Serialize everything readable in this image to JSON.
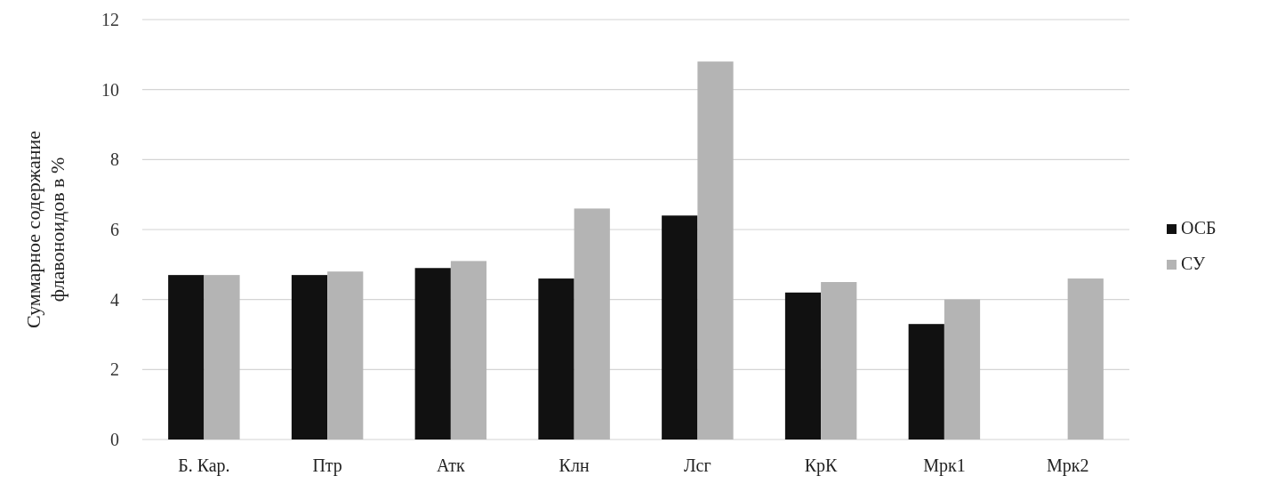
{
  "chart_data": {
    "type": "bar",
    "ylabel": "Суммарное содержание флавоноидов в %",
    "categories": [
      "Б. Кар.",
      "Птр",
      "Атк",
      "Клн",
      "Лсг",
      "КрК",
      "Мрк1",
      "Мрк2"
    ],
    "series": [
      {
        "name": "ОСБ",
        "color": "#111111",
        "values": [
          4.7,
          4.7,
          4.9,
          4.6,
          6.4,
          4.2,
          3.3,
          null
        ]
      },
      {
        "name": "СУ",
        "color": "#b4b4b4",
        "values": [
          4.7,
          4.8,
          5.1,
          6.6,
          10.8,
          4.5,
          4.0,
          4.6
        ]
      }
    ],
    "ylim": [
      0,
      12
    ],
    "yticks": [
      0,
      2,
      4,
      6,
      8,
      10,
      12
    ],
    "grid": "y",
    "legend": "right"
  }
}
